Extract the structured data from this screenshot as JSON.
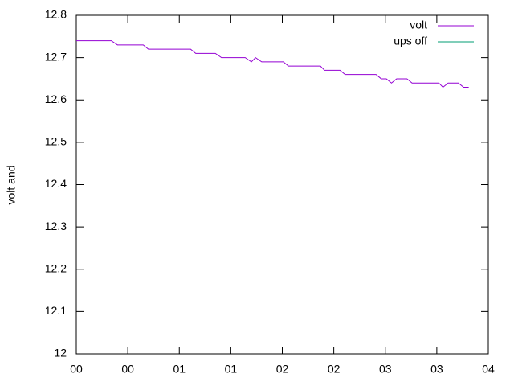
{
  "chart_data": {
    "type": "line",
    "ylabel": "volt and",
    "xlim": [
      0,
      4
    ],
    "ylim": [
      12,
      12.8
    ],
    "yticks": [
      12,
      12.1,
      12.2,
      12.3,
      12.4,
      12.5,
      12.6,
      12.7,
      12.8
    ],
    "xticks": [
      {
        "value": 0,
        "label": "00"
      },
      {
        "value": 0.5,
        "label": "00"
      },
      {
        "value": 1,
        "label": "01"
      },
      {
        "value": 1.5,
        "label": "01"
      },
      {
        "value": 2,
        "label": "02"
      },
      {
        "value": 2.5,
        "label": "02"
      },
      {
        "value": 3,
        "label": "03"
      },
      {
        "value": 3.5,
        "label": "03"
      },
      {
        "value": 4,
        "label": "04"
      }
    ],
    "legend": "top-right",
    "series": [
      {
        "name": "volt",
        "color": "#9400d3",
        "x": [
          0,
          0.34,
          0.4,
          0.65,
          0.7,
          1.11,
          1.16,
          1.35,
          1.41,
          1.64,
          1.7,
          1.74,
          1.8,
          2.01,
          2.06,
          2.37,
          2.41,
          2.56,
          2.61,
          2.91,
          2.96,
          3.01,
          3.06,
          3.11,
          3.21,
          3.26,
          3.52,
          3.56,
          3.61,
          3.71,
          3.76,
          3.81
        ],
        "values": [
          12.74,
          12.74,
          12.73,
          12.73,
          12.72,
          12.72,
          12.71,
          12.71,
          12.7,
          12.7,
          12.69,
          12.7,
          12.69,
          12.69,
          12.68,
          12.68,
          12.67,
          12.67,
          12.66,
          12.66,
          12.65,
          12.65,
          12.64,
          12.65,
          12.65,
          12.64,
          12.64,
          12.63,
          12.64,
          12.64,
          12.63,
          12.63
        ]
      },
      {
        "name": "ups off",
        "color": "#009e73",
        "x": [],
        "values": []
      }
    ]
  }
}
